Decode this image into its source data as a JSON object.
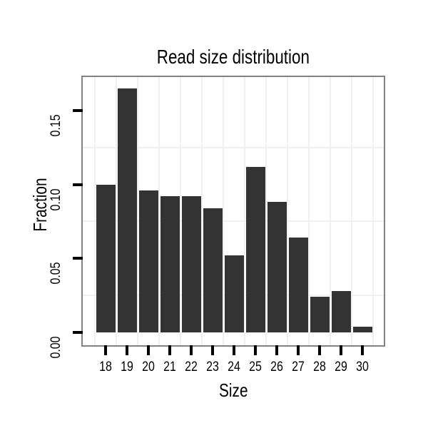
{
  "chart_data": {
    "type": "bar",
    "title": "Read size distribution",
    "xlabel": "Size",
    "ylabel": "Fraction",
    "categories": [
      "18",
      "19",
      "20",
      "21",
      "22",
      "23",
      "24",
      "25",
      "26",
      "27",
      "28",
      "29",
      "30"
    ],
    "values": [
      0.1,
      0.165,
      0.096,
      0.092,
      0.092,
      0.084,
      0.052,
      0.112,
      0.088,
      0.064,
      0.024,
      0.028,
      0.004
    ],
    "yticks": [
      0,
      0.05,
      0.1,
      0.15
    ],
    "ytick_labels": [
      "0.00",
      "0.05",
      "0.10",
      "0.15"
    ],
    "ylim": [
      0,
      0.174
    ],
    "minor_gridlines_y": [
      0.025,
      0.075,
      0.125
    ],
    "minor_gridlines_x": "between-categories",
    "grid": "minor-only",
    "legend_position": "none",
    "bar_color": "#333333",
    "panel_border_color": "#828282",
    "gridline_color": "#f0f0f0",
    "tick_color": "#000000",
    "background_color": "#ffffff"
  }
}
